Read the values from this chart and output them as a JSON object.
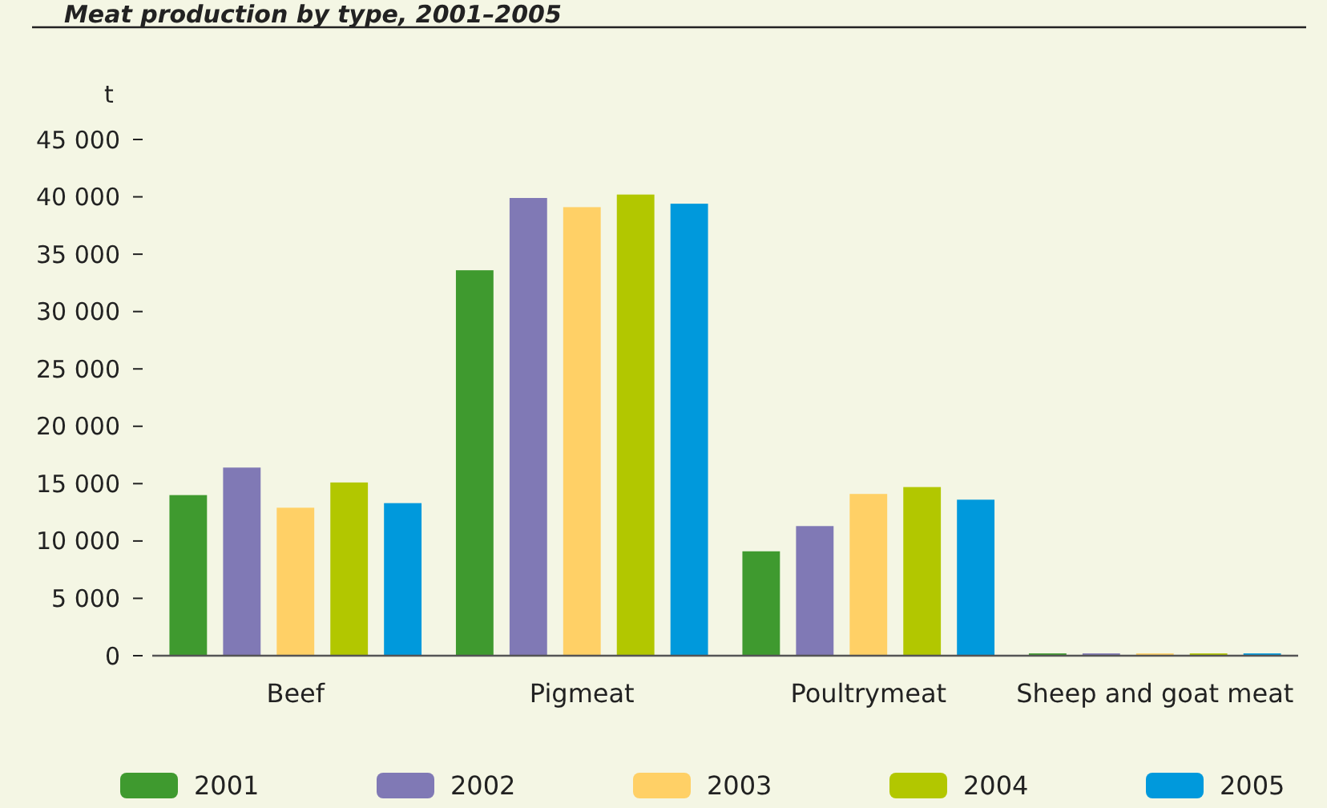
{
  "chart_data": {
    "type": "bar",
    "title": "Meat production by type, 2001–2005",
    "ylabel": "t",
    "categories": [
      "Beef",
      "Pigmeat",
      "Poultrymeat",
      "Sheep and goat meat"
    ],
    "series": [
      {
        "name": "2001",
        "color": "#3f9a2f",
        "values": [
          14000,
          33600,
          9100,
          200
        ]
      },
      {
        "name": "2002",
        "color": "#8079b5",
        "values": [
          16400,
          39900,
          11300,
          200
        ]
      },
      {
        "name": "2003",
        "color": "#ffd066",
        "values": [
          12900,
          39100,
          14100,
          200
        ]
      },
      {
        "name": "2004",
        "color": "#b2c700",
        "values": [
          15100,
          40200,
          14700,
          200
        ]
      },
      {
        "name": "2005",
        "color": "#0099dc",
        "values": [
          13300,
          39400,
          13600,
          200
        ]
      }
    ],
    "ylim": [
      0,
      45000
    ],
    "yticks": [
      {
        "value": 0,
        "label": "0"
      },
      {
        "value": 5000,
        "label": "5 000"
      },
      {
        "value": 10000,
        "label": "10 000"
      },
      {
        "value": 15000,
        "label": "15 000"
      },
      {
        "value": 20000,
        "label": "20 000"
      },
      {
        "value": 25000,
        "label": "25 000"
      },
      {
        "value": 30000,
        "label": "30 000"
      },
      {
        "value": 35000,
        "label": "35 000"
      },
      {
        "value": 40000,
        "label": "40 000"
      },
      {
        "value": 45000,
        "label": "45 000"
      }
    ],
    "grid": false,
    "legend": "bottom"
  }
}
